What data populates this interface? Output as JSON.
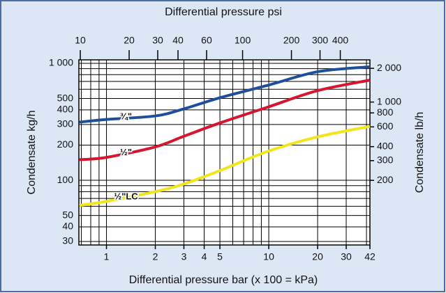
{
  "chart_data": {
    "type": "line",
    "title": "Differential pressure psi",
    "x_label": "Differential pressure bar (x 100 = kPa)",
    "y_label": "Condensate kg/h",
    "y2_label": "Condensate lb/h",
    "log_x": true,
    "log_y": true,
    "grid": true,
    "x": [
      0.68,
      1,
      2,
      3,
      5,
      10,
      20,
      42
    ],
    "series": [
      {
        "name": "¾\"",
        "color": "#1f4e9c",
        "values": [
          314,
          331,
          355,
          408,
          508,
          652,
          847,
          933
        ]
      },
      {
        "name": "½\"",
        "color": "#d7152f",
        "values": [
          150,
          157,
          193,
          238,
          309,
          425,
          584,
          718
        ]
      },
      {
        "name": "½\"LC",
        "color": "#f2e51a",
        "values": [
          61,
          66,
          80,
          93,
          121,
          178,
          235,
          289
        ]
      }
    ],
    "xlim": [
      0.676,
      42
    ],
    "xticks": [
      1,
      2,
      3,
      4,
      5,
      10,
      20,
      30,
      42
    ],
    "xminorticks": [
      0.7,
      0.8,
      0.9,
      6,
      7,
      8,
      9,
      40
    ],
    "x2lim": [
      9.8,
      609
    ],
    "x2ticks": [
      10,
      20,
      30,
      40,
      60,
      100,
      200,
      300,
      400
    ],
    "ylim": [
      28,
      1070
    ],
    "yticks": [
      30,
      40,
      50,
      100,
      200,
      300,
      400,
      500,
      {
        "value": 1000,
        "label": "1 000"
      }
    ],
    "yminorticks": [
      60,
      70,
      80,
      90,
      600,
      700,
      800,
      900
    ],
    "y2lim": [
      53,
      2380
    ],
    "y2ticks": [
      200,
      300,
      400,
      600,
      800,
      {
        "value": 1000,
        "label": "1 000"
      },
      {
        "value": 2000,
        "label": "2 000"
      }
    ]
  }
}
